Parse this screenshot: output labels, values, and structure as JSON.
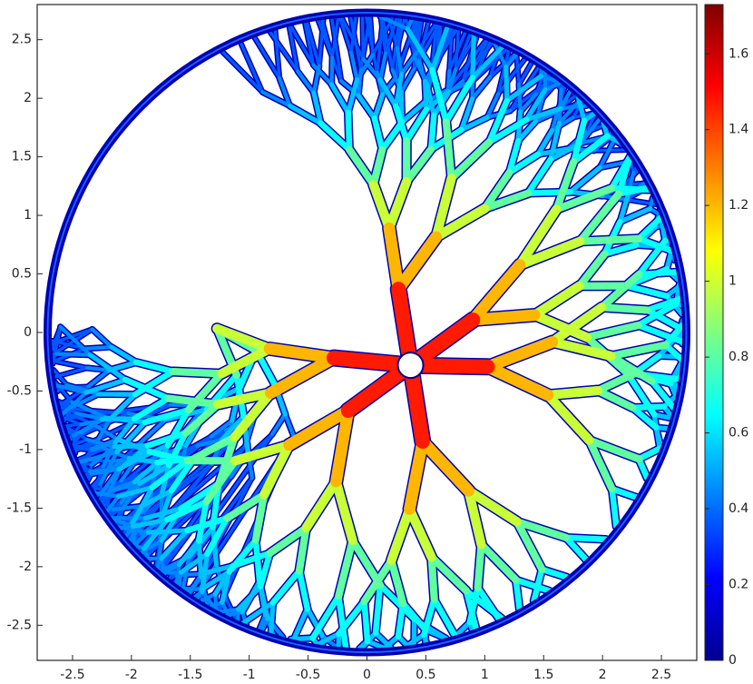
{
  "chart_data": {
    "type": "field",
    "xlim": [
      -2.8,
      2.8
    ],
    "xticks": [
      -2.5,
      -2,
      -1.5,
      -1,
      -0.5,
      0,
      0.5,
      1,
      1.5,
      2,
      2.5
    ],
    "ylim": [
      -2.8,
      2.8
    ],
    "yticks": [
      -2.5,
      -2,
      -1.5,
      -1,
      -0.5,
      0,
      0.5,
      1,
      1.5,
      2,
      2.5
    ],
    "colorbar": {
      "lim": [
        0,
        1.73
      ],
      "ticks": [
        0,
        0.2,
        0.4,
        0.6,
        0.8,
        1,
        1.2,
        1.4,
        1.6
      ],
      "colormap": "jet"
    }
  }
}
